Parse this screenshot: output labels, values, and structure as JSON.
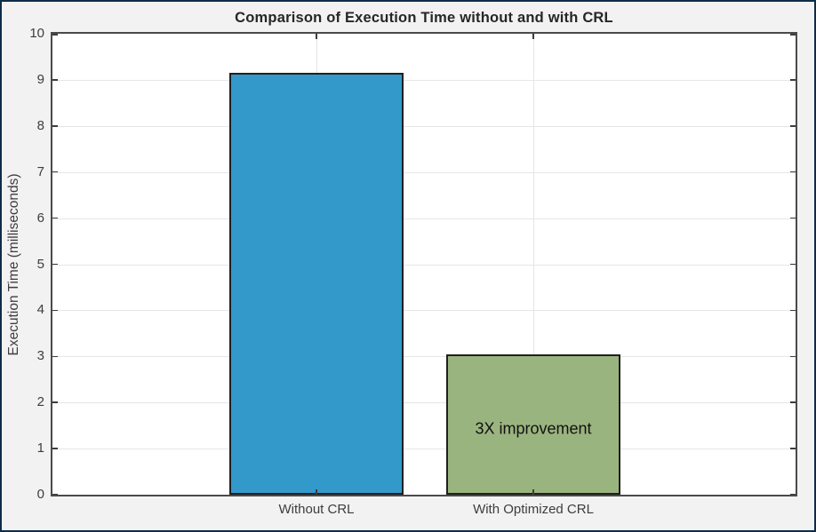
{
  "chart_data": {
    "type": "bar",
    "title": "Comparison of Execution Time without and with CRL",
    "xlabel": "",
    "ylabel": "Execution Time (milliseconds)",
    "categories": [
      "Without CRL",
      "With Optimized CRL"
    ],
    "values": [
      9.15,
      3.05
    ],
    "ylim": [
      0,
      10
    ],
    "yticks": [
      0,
      1,
      2,
      3,
      4,
      5,
      6,
      7,
      8,
      9,
      10
    ],
    "grid": true,
    "legend_position": "none",
    "bar_width_fraction": 0.8,
    "annotations": [
      {
        "text": "3X improvement",
        "category_index": 1,
        "y_value": 1.43
      }
    ],
    "colors": {
      "bars": [
        "#3399cb",
        "#9ab47f"
      ],
      "bar_edge": "#1f1f1f",
      "grid": "#e6e6e6",
      "axis_box": "#4a4a4a",
      "tick": "#3c3c3c",
      "tick_text": "#3d3d3d",
      "title_text": "#262626",
      "annotation_text": "#111111",
      "plot_background": "#ffffff",
      "figure_background": "#f2f2f2",
      "frame_border": "#0d2c49"
    }
  }
}
